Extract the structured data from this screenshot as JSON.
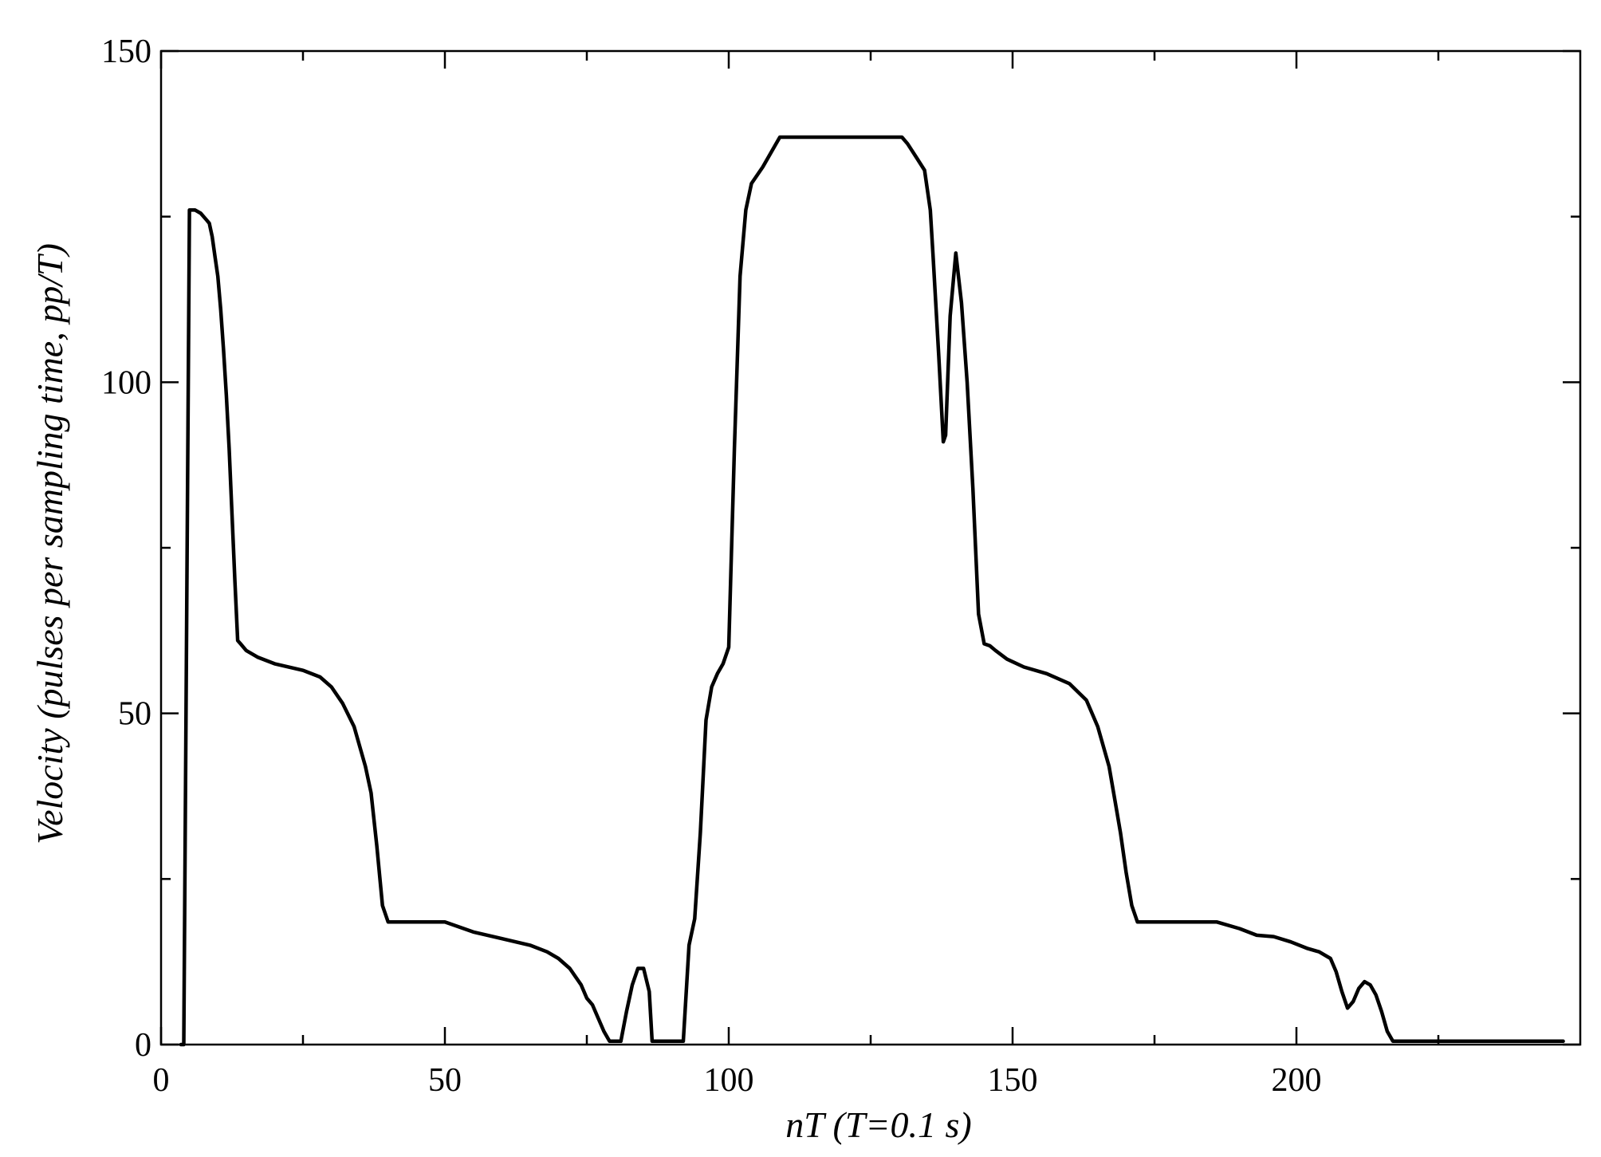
{
  "chart_data": {
    "type": "line",
    "title": "",
    "xlabel": "nT (T=0.1 s)",
    "ylabel": "Velocity (pulses per sampling time, pp/T)",
    "xlim": [
      0,
      250
    ],
    "ylim": [
      0,
      150
    ],
    "x_major_ticks": [
      0,
      50,
      100,
      150,
      200
    ],
    "x_minor_ticks": [
      25,
      75,
      125,
      175,
      225
    ],
    "y_major_ticks": [
      0,
      50,
      100,
      150
    ],
    "y_minor_ticks": [
      25,
      75,
      125
    ],
    "x_tick_labels": [
      "0",
      "50",
      "100",
      "150",
      "200"
    ],
    "y_tick_labels": [
      "0",
      "50",
      "100",
      "150"
    ],
    "grid": false,
    "legend": "none",
    "series": [
      {
        "color": "#000000",
        "points": [
          [
            3.5,
            0
          ],
          [
            4.0,
            0
          ],
          [
            5.0,
            126
          ],
          [
            6.0,
            126
          ],
          [
            7.0,
            125.5
          ],
          [
            8.0,
            124.5
          ],
          [
            8.5,
            124
          ],
          [
            9.0,
            122
          ],
          [
            9.5,
            119
          ],
          [
            10.0,
            116
          ],
          [
            10.5,
            111
          ],
          [
            11.0,
            105
          ],
          [
            11.5,
            98
          ],
          [
            12.0,
            90
          ],
          [
            12.5,
            80
          ],
          [
            13.0,
            70
          ],
          [
            13.5,
            61
          ],
          [
            14.0,
            60.5
          ],
          [
            15.0,
            59.5
          ],
          [
            17.0,
            58.5
          ],
          [
            20.0,
            57.5
          ],
          [
            25.0,
            56.5
          ],
          [
            28.0,
            55.5
          ],
          [
            30.0,
            54
          ],
          [
            32.0,
            51.5
          ],
          [
            34.0,
            48
          ],
          [
            36.0,
            42
          ],
          [
            37.0,
            38
          ],
          [
            38.0,
            30
          ],
          [
            39.0,
            21
          ],
          [
            40.0,
            18.5
          ],
          [
            42.0,
            18.5
          ],
          [
            50.0,
            18.5
          ],
          [
            55.0,
            17
          ],
          [
            60.0,
            16
          ],
          [
            65.0,
            15
          ],
          [
            68.0,
            14
          ],
          [
            70.0,
            13
          ],
          [
            72.0,
            11.5
          ],
          [
            74.0,
            9
          ],
          [
            75.0,
            7
          ],
          [
            76.0,
            6
          ],
          [
            77.0,
            4
          ],
          [
            78.0,
            2
          ],
          [
            79.0,
            0.5
          ],
          [
            80.5,
            0.5
          ],
          [
            81.0,
            0.5
          ],
          [
            82.0,
            5
          ],
          [
            83.0,
            9
          ],
          [
            84.0,
            11.5
          ],
          [
            85.0,
            11.5
          ],
          [
            86.0,
            8
          ],
          [
            86.5,
            0.5
          ],
          [
            92.0,
            0.5
          ],
          [
            93.0,
            15
          ],
          [
            94.0,
            19
          ],
          [
            95.0,
            32
          ],
          [
            96.0,
            49
          ],
          [
            97.0,
            54
          ],
          [
            98.0,
            56
          ],
          [
            99.0,
            57.5
          ],
          [
            100.0,
            60
          ],
          [
            101.0,
            90
          ],
          [
            102.0,
            116
          ],
          [
            103.0,
            126
          ],
          [
            104.0,
            130
          ],
          [
            106.0,
            132.5
          ],
          [
            108.0,
            135.5
          ],
          [
            109.0,
            137
          ],
          [
            112.0,
            137
          ],
          [
            115.0,
            137
          ],
          [
            120.0,
            137
          ],
          [
            125.0,
            137
          ],
          [
            130.5,
            137
          ],
          [
            131.5,
            136
          ],
          [
            133.0,
            134
          ],
          [
            134.5,
            132
          ],
          [
            135.5,
            126
          ],
          [
            136.0,
            119
          ],
          [
            137.0,
            104
          ],
          [
            137.8,
            91
          ],
          [
            138.2,
            92
          ],
          [
            139.0,
            110
          ],
          [
            140.0,
            119.5
          ],
          [
            141.0,
            112
          ],
          [
            142.0,
            100
          ],
          [
            143.0,
            84
          ],
          [
            144.0,
            65
          ],
          [
            145.0,
            60.5
          ],
          [
            146.0,
            60.2
          ],
          [
            147.0,
            59.5
          ],
          [
            149.0,
            58.2
          ],
          [
            152.0,
            57
          ],
          [
            156.0,
            56
          ],
          [
            160.0,
            54.5
          ],
          [
            163.0,
            52
          ],
          [
            165.0,
            48
          ],
          [
            167.0,
            42
          ],
          [
            168.0,
            37
          ],
          [
            169.0,
            32
          ],
          [
            170.0,
            26
          ],
          [
            171.0,
            21
          ],
          [
            172.0,
            18.5
          ],
          [
            175.0,
            18.5
          ],
          [
            180.0,
            18.5
          ],
          [
            186.0,
            18.5
          ],
          [
            190.0,
            17.5
          ],
          [
            193.0,
            16.5
          ],
          [
            196.0,
            16.3
          ],
          [
            199.0,
            15.5
          ],
          [
            202.0,
            14.5
          ],
          [
            204.0,
            14
          ],
          [
            206.0,
            13
          ],
          [
            207.0,
            11
          ],
          [
            208.0,
            8
          ],
          [
            209.0,
            5.5
          ],
          [
            210.0,
            6.5
          ],
          [
            211.0,
            8.5
          ],
          [
            212.0,
            9.5
          ],
          [
            213.0,
            9
          ],
          [
            214.0,
            7.5
          ],
          [
            215.0,
            5
          ],
          [
            216.0,
            2
          ],
          [
            217.0,
            0.5
          ],
          [
            218.0,
            0.5
          ],
          [
            220.0,
            0.5
          ],
          [
            230.0,
            0.5
          ],
          [
            240.0,
            0.5
          ],
          [
            247.0,
            0.5
          ]
        ]
      }
    ]
  }
}
